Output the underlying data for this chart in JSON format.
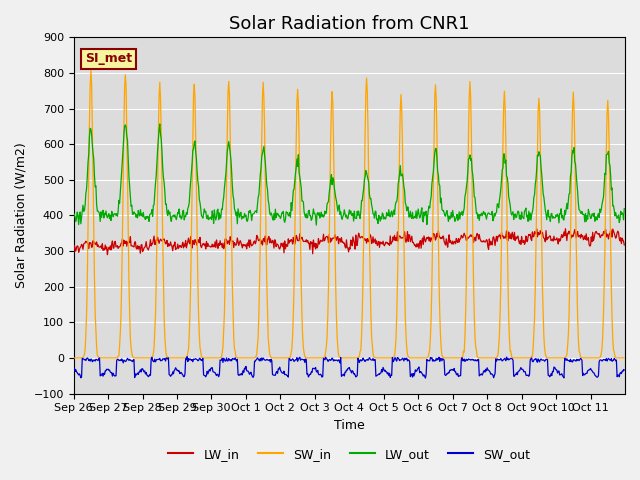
{
  "title": "Solar Radiation from CNR1",
  "xlabel": "Time",
  "ylabel": "Solar Radiation (W/m2)",
  "ylim": [
    -100,
    900
  ],
  "annotation_text": "SI_met",
  "line_colors": {
    "LW_in": "#cc0000",
    "SW_in": "#ffa500",
    "LW_out": "#00aa00",
    "SW_out": "#0000cc"
  },
  "legend_labels": [
    "LW_in",
    "SW_in",
    "LW_out",
    "SW_out"
  ],
  "x_tick_labels": [
    "Sep 26",
    "Sep 27",
    "Sep 28",
    "Sep 29",
    "Sep 30",
    "Oct 1",
    "Oct 2",
    "Oct 3",
    "Oct 4",
    "Oct 5",
    "Oct 6",
    "Oct 7",
    "Oct 8",
    "Oct 9",
    "Oct 10",
    "Oct 11"
  ],
  "bg_color": "#dcdcdc",
  "title_fontsize": 13,
  "axis_label_fontsize": 9,
  "tick_fontsize": 8
}
